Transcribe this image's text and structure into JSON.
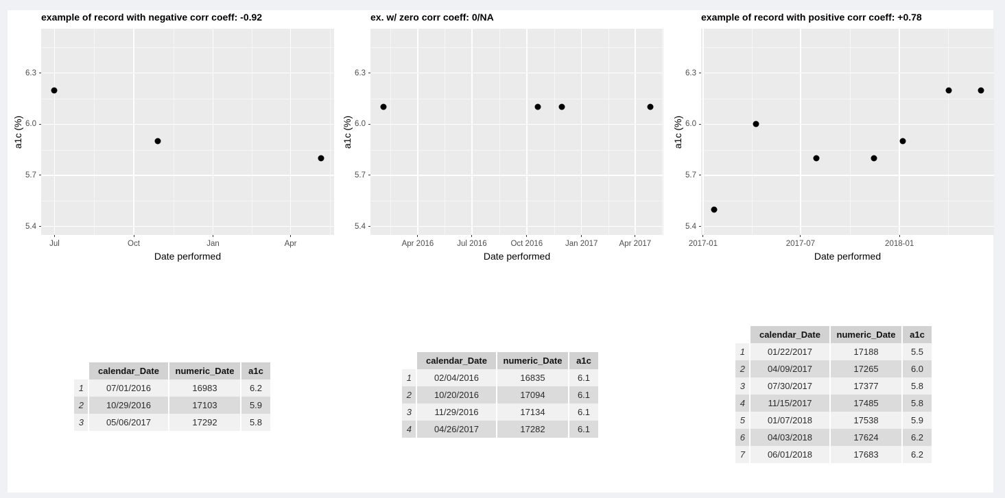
{
  "page": {
    "background": "#eff1f5",
    "content_background": "#ffffff"
  },
  "chart_style": {
    "panel_bg": "#ebebeb",
    "grid_color": "#ffffff",
    "point_color": "#000000",
    "tick_text_color": "#4d4d4d",
    "axis_title_color": "#000000",
    "title_color": "#000000",
    "legend": "none",
    "grid": "major+minor"
  },
  "chart_data": [
    {
      "type": "scatter",
      "title": "example of record with negative corr coeff: -0.92",
      "xlabel": "Date performed",
      "ylabel": "a1c (%)",
      "x_domain": [
        16967.5,
        17307.5
      ],
      "y_domain": [
        5.35,
        6.56
      ],
      "x_ticks": [
        {
          "v": 16983,
          "label": "Jul"
        },
        {
          "v": 17075,
          "label": "Oct"
        },
        {
          "v": 17167,
          "label": "Jan"
        },
        {
          "v": 17257,
          "label": "Apr"
        }
      ],
      "x_minor_ticks": [
        17029,
        17121,
        17212,
        17302.5
      ],
      "y_ticks": [
        {
          "v": 5.4,
          "label": "5.4"
        },
        {
          "v": 5.7,
          "label": "5.7"
        },
        {
          "v": 6.0,
          "label": "6.0"
        },
        {
          "v": 6.3,
          "label": "6.3"
        }
      ],
      "y_minor_ticks": [
        5.55,
        5.85,
        6.15,
        6.45
      ],
      "points": [
        {
          "x": 16983,
          "y": 6.2
        },
        {
          "x": 17103,
          "y": 5.9
        },
        {
          "x": 17292,
          "y": 5.8
        }
      ]
    },
    {
      "type": "scatter",
      "title": "ex. w/ zero corr coeff: 0/NA",
      "xlabel": "Date performed",
      "ylabel": "a1c (%)",
      "x_domain": [
        16812.6,
        17304.4
      ],
      "y_domain": [
        5.35,
        6.56
      ],
      "x_ticks": [
        {
          "v": 16892,
          "label": "Apr 2016"
        },
        {
          "v": 16983,
          "label": "Jul 2016"
        },
        {
          "v": 17075,
          "label": "Oct 2016"
        },
        {
          "v": 17167,
          "label": "Jan 2017"
        },
        {
          "v": 17257,
          "label": "Apr 2017"
        }
      ],
      "x_minor_ticks": [
        16846.5,
        16937.5,
        17029,
        17121,
        17212,
        17302.5
      ],
      "y_ticks": [
        {
          "v": 5.4,
          "label": "5.4"
        },
        {
          "v": 5.7,
          "label": "5.7"
        },
        {
          "v": 6.0,
          "label": "6.0"
        },
        {
          "v": 6.3,
          "label": "6.3"
        }
      ],
      "y_minor_ticks": [
        5.55,
        5.85,
        6.15,
        6.45
      ],
      "points": [
        {
          "x": 16835,
          "y": 6.1
        },
        {
          "x": 17094,
          "y": 6.1
        },
        {
          "x": 17134,
          "y": 6.1
        },
        {
          "x": 17282,
          "y": 6.1
        }
      ]
    },
    {
      "type": "scatter",
      "title": "example of record with positive corr coeff: +0.78",
      "xlabel": "Date performed",
      "ylabel": "a1c (%)",
      "x_domain": [
        17163.2,
        17707.8
      ],
      "y_domain": [
        5.35,
        6.56
      ],
      "x_ticks": [
        {
          "v": 17167,
          "label": "2017-01"
        },
        {
          "v": 17348,
          "label": "2017-07"
        },
        {
          "v": 17532,
          "label": "2018-01"
        }
      ],
      "x_minor_ticks": [
        17257.5,
        17440,
        17622.5
      ],
      "y_ticks": [
        {
          "v": 5.4,
          "label": "5.4"
        },
        {
          "v": 5.7,
          "label": "5.7"
        },
        {
          "v": 6.0,
          "label": "6.0"
        },
        {
          "v": 6.3,
          "label": "6.3"
        }
      ],
      "y_minor_ticks": [
        5.55,
        5.85,
        6.15,
        6.45
      ],
      "points": [
        {
          "x": 17188,
          "y": 5.5
        },
        {
          "x": 17265,
          "y": 6.0
        },
        {
          "x": 17377,
          "y": 5.8
        },
        {
          "x": 17485,
          "y": 5.8
        },
        {
          "x": 17538,
          "y": 5.9
        },
        {
          "x": 17624,
          "y": 6.2
        },
        {
          "x": 17683,
          "y": 6.2
        }
      ]
    }
  ],
  "tables": [
    {
      "columns": [
        "calendar_Date",
        "numeric_Date",
        "a1c"
      ],
      "rows": [
        [
          "1",
          "07/01/2016",
          "16983",
          "6.2"
        ],
        [
          "2",
          "10/29/2016",
          "17103",
          "5.9"
        ],
        [
          "3",
          "05/06/2017",
          "17292",
          "5.8"
        ]
      ]
    },
    {
      "columns": [
        "calendar_Date",
        "numeric_Date",
        "a1c"
      ],
      "rows": [
        [
          "1",
          "02/04/2016",
          "16835",
          "6.1"
        ],
        [
          "2",
          "10/20/2016",
          "17094",
          "6.1"
        ],
        [
          "3",
          "11/29/2016",
          "17134",
          "6.1"
        ],
        [
          "4",
          "04/26/2017",
          "17282",
          "6.1"
        ]
      ]
    },
    {
      "columns": [
        "calendar_Date",
        "numeric_Date",
        "a1c"
      ],
      "rows": [
        [
          "1",
          "01/22/2017",
          "17188",
          "5.5"
        ],
        [
          "2",
          "04/09/2017",
          "17265",
          "6.0"
        ],
        [
          "3",
          "07/30/2017",
          "17377",
          "5.8"
        ],
        [
          "4",
          "11/15/2017",
          "17485",
          "5.8"
        ],
        [
          "5",
          "01/07/2018",
          "17538",
          "5.9"
        ],
        [
          "6",
          "04/03/2018",
          "17624",
          "6.2"
        ],
        [
          "7",
          "06/01/2018",
          "17683",
          "6.2"
        ]
      ]
    }
  ]
}
